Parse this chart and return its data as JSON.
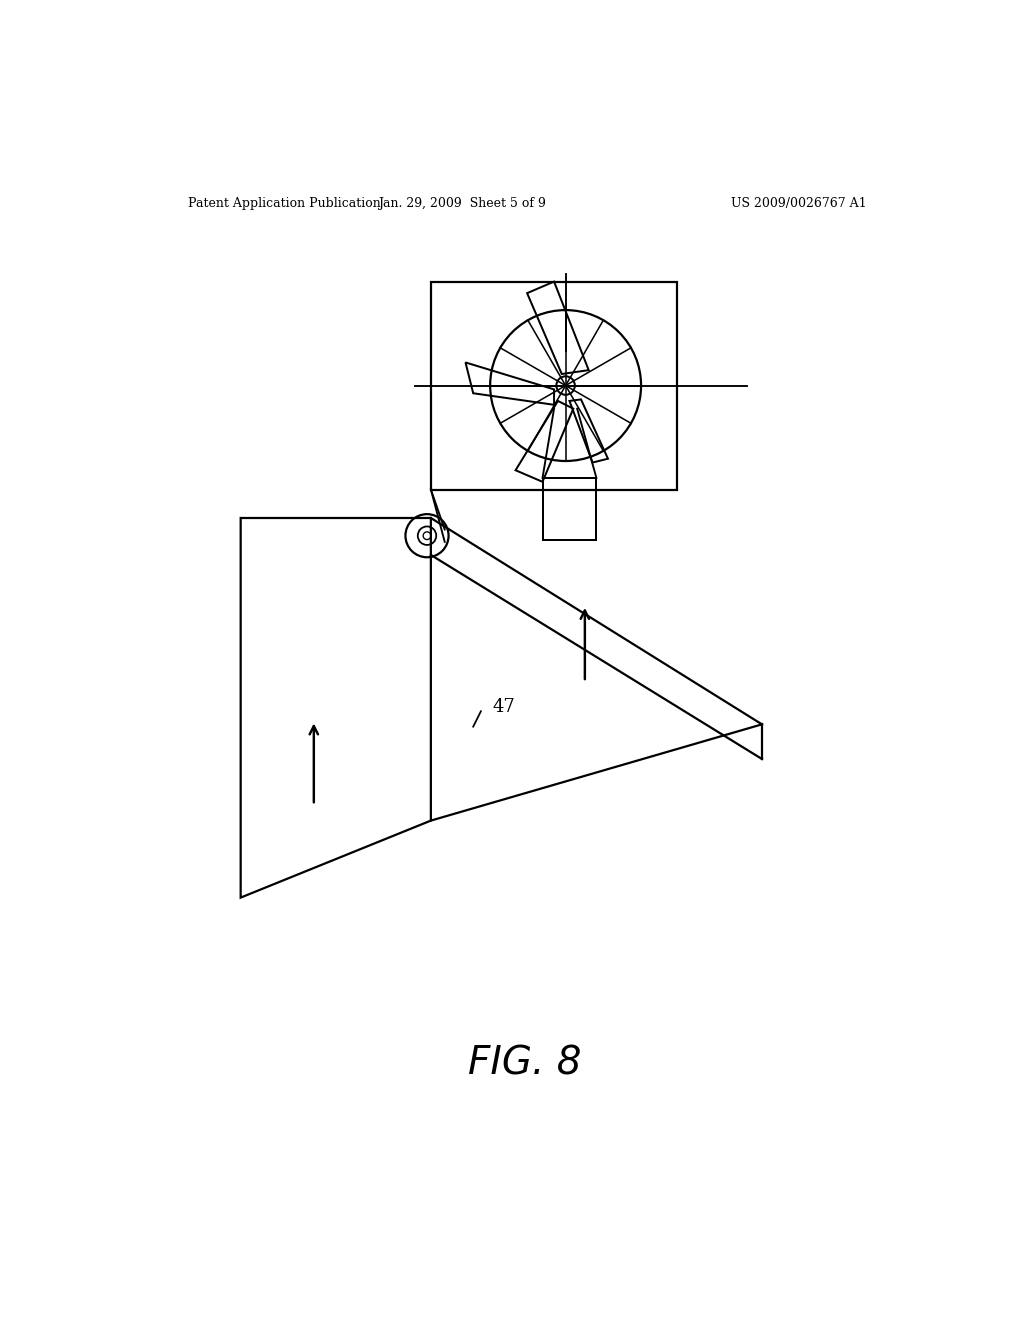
{
  "bg_color": "#ffffff",
  "header_left": "Patent Application Publication",
  "header_center": "Jan. 29, 2009  Sheet 5 of 9",
  "header_right": "US 2009/0026767 A1",
  "label_47": "47",
  "fig_label": "FIG. 8",
  "lw": 1.6
}
